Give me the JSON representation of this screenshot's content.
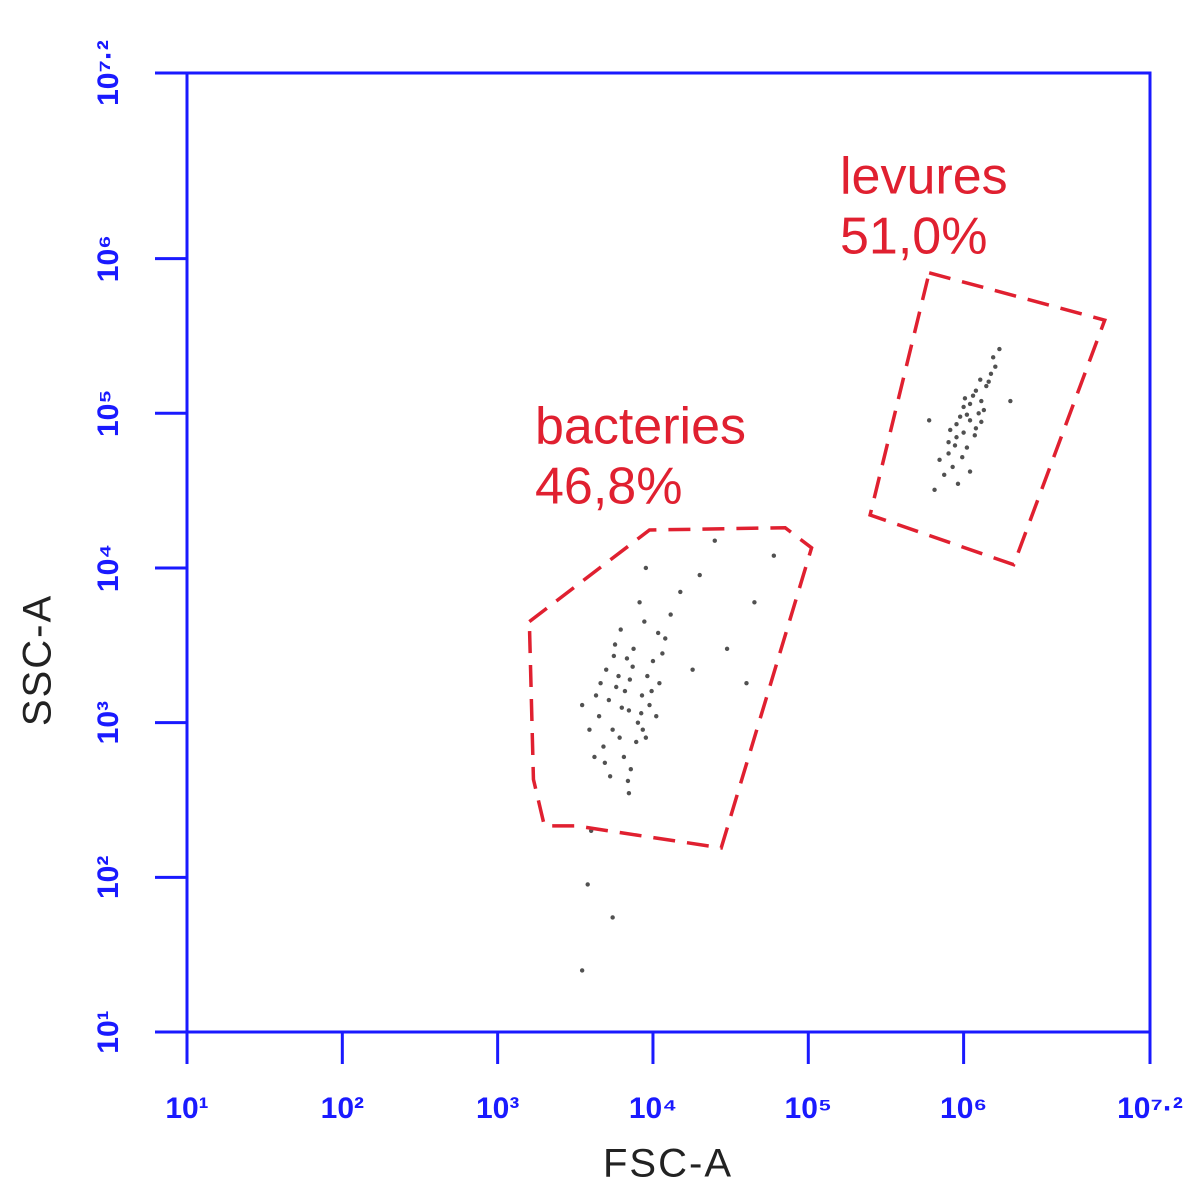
{
  "chart_data": {
    "type": "scatter",
    "x_label": "FSC-A",
    "y_label": "SSC-A",
    "log_x": true,
    "log_y": true,
    "xlim": [
      10,
      15848932
    ],
    "ylim": [
      10,
      15848932
    ],
    "xticks": [
      {
        "value": 10,
        "label": "10¹"
      },
      {
        "value": 100,
        "label": "10²"
      },
      {
        "value": 1000,
        "label": "10³"
      },
      {
        "value": 10000,
        "label": "10⁴"
      },
      {
        "value": 100000,
        "label": "10⁵"
      },
      {
        "value": 1000000,
        "label": "10⁶"
      },
      {
        "value": 15848932,
        "label": "10⁷·²"
      }
    ],
    "yticks": [
      {
        "value": 10,
        "label": "10¹"
      },
      {
        "value": 100,
        "label": "10²"
      },
      {
        "value": 1000,
        "label": "10³"
      },
      {
        "value": 10000,
        "label": "10⁴"
      },
      {
        "value": 100000,
        "label": "10⁵"
      },
      {
        "value": 1000000,
        "label": "10⁶"
      },
      {
        "value": 15848932,
        "label": "10⁷·²"
      }
    ],
    "axis_color": "#1a1aff",
    "point_color": "#333333",
    "gate_color": "#e02030",
    "x": [
      7000,
      5500,
      8500,
      6000,
      9000,
      4800,
      7500,
      11000,
      6500,
      5200,
      10000,
      8000,
      4500,
      6200,
      12000,
      7200,
      5800,
      9500,
      4200,
      6800,
      8800,
      5000,
      7800,
      10500,
      3900,
      6600,
      9200,
      5300,
      8200,
      7000,
      11500,
      4600,
      6300,
      8600,
      5700,
      13000,
      7400,
      4900,
      9800,
      6100,
      3500,
      15000,
      5600,
      8400,
      7100,
      6900,
      10800,
      4300,
      20000,
      30000,
      45000,
      25000,
      4000,
      3800,
      5500,
      3500,
      60000,
      9000,
      40000,
      18000,
      1100000,
      900000,
      1300000,
      1000000,
      1200000,
      800000,
      1400000,
      950000,
      1050000,
      1250000,
      850000,
      1500000,
      1150000,
      900000,
      700000,
      1350000,
      1000000,
      1200000,
      800000,
      1600000,
      1100000,
      980000,
      1300000,
      750000,
      1450000,
      1050000,
      880000,
      1180000,
      1550000,
      920000,
      650000,
      1700000,
      1020000,
      1280000,
      820000,
      2000000,
      600000,
      1100000
    ],
    "y": [
      1200,
      900,
      1500,
      2000,
      800,
      700,
      3000,
      1800,
      600,
      1400,
      2500,
      1000,
      1100,
      4000,
      3500,
      500,
      1700,
      1300,
      600,
      2600,
      4500,
      2200,
      750,
      1100,
      900,
      1600,
      2000,
      450,
      6000,
      350,
      2800,
      1800,
      1250,
      900,
      3200,
      5000,
      2300,
      550,
      1600,
      800,
      1300,
      7000,
      2700,
      1150,
      1900,
      420,
      3800,
      1500,
      9000,
      3000,
      6000,
      15000,
      200,
      90,
      55,
      25,
      12000,
      10000,
      1800,
      2200,
      90000,
      70000,
      120000,
      110000,
      80000,
      55000,
      150000,
      95000,
      60000,
      100000,
      45000,
      180000,
      130000,
      85000,
      50000,
      105000,
      75000,
      140000,
      65000,
      200000,
      115000,
      52000,
      88000,
      40000,
      160000,
      98000,
      62000,
      72000,
      230000,
      35000,
      32000,
      260000,
      125000,
      165000,
      78000,
      120000,
      90000,
      42000
    ],
    "gates": [
      {
        "label": "bacteries",
        "percent_label": "46,8%",
        "x": [
          1600,
          9500,
          71000,
          105000,
          27500,
          3200,
          2000,
          1700
        ],
        "y": [
          4500,
          17600,
          18200,
          13500,
          155,
          215,
          215,
          430
        ]
      },
      {
        "label": "levures",
        "percent_label": "51,0%",
        "x": [
          600000,
          8100000,
          2100000,
          250000
        ],
        "y": [
          810000,
          400000,
          10500,
          22000
        ]
      }
    ]
  }
}
